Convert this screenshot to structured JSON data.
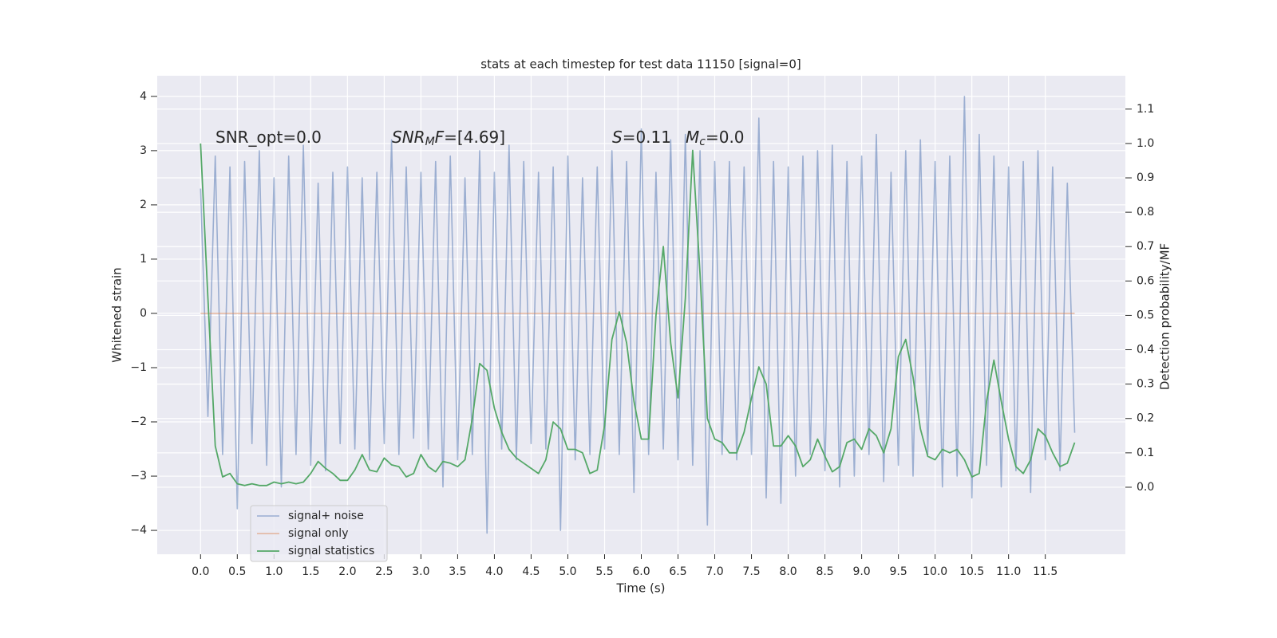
{
  "chart_data": {
    "type": "line",
    "title": "stats at each timestep for test data 11150 [signal=0]",
    "x_label": "Time (s)",
    "y_label": "Whitened strain",
    "y2_label": "Detection probability/MF",
    "grid": true,
    "legend": "lower left",
    "xlim": [
      -0.59,
      12.59
    ],
    "ylim": [
      -4.44,
      4.38
    ],
    "y2lim": [
      -0.195,
      1.197
    ],
    "xticks": [
      {
        "value": 0,
        "label": "0.0"
      },
      0.5,
      {
        "value": 1,
        "label": "1.0"
      },
      1.5,
      {
        "value": 2,
        "label": "2.0"
      },
      2.5,
      {
        "value": 3,
        "label": "3.0"
      },
      3.5,
      {
        "value": 4,
        "label": "4.0"
      },
      4.5,
      {
        "value": 5,
        "label": "5.0"
      },
      5.5,
      {
        "value": 6,
        "label": "6.0"
      },
      6.5,
      {
        "value": 7,
        "label": "7.0"
      },
      7.5,
      {
        "value": 8,
        "label": "8.0"
      },
      8.5,
      {
        "value": 9,
        "label": "9.0"
      },
      9.5,
      {
        "value": 10,
        "label": "10.0"
      },
      10.5,
      {
        "value": 11,
        "label": "11.0"
      },
      11.5
    ],
    "yticks": [
      {
        "value": -4,
        "label": "−4"
      },
      {
        "value": -3,
        "label": "−3"
      },
      {
        "value": -2,
        "label": "−2"
      },
      {
        "value": -1,
        "label": "−1"
      },
      0,
      1,
      2,
      3,
      4
    ],
    "y2ticks": [
      {
        "value": 0,
        "label": "0.0"
      },
      0.1,
      0.2,
      0.3,
      0.4,
      0.5,
      0.6,
      0.7,
      0.8,
      0.9,
      {
        "value": 1,
        "label": "1.0"
      },
      1.1
    ],
    "annotations": [
      {
        "parts": [
          {
            "text": "SNR_opt=0.0"
          }
        ]
      },
      {
        "parts": [
          {
            "text": "SNR",
            "italic": true
          },
          {
            "text": "M",
            "italic": true,
            "sub": true
          },
          {
            "text": "F",
            "italic": true
          },
          {
            "text": "=[4.69]"
          }
        ]
      },
      {
        "parts": [
          {
            "text": "S",
            "italic": true
          },
          {
            "text": "=0.11"
          }
        ]
      },
      {
        "parts": [
          {
            "text": "M",
            "italic": true
          },
          {
            "text": "c",
            "italic": true,
            "sub": true
          },
          {
            "text": "=0.0"
          }
        ]
      }
    ],
    "x": [
      0,
      0.1,
      0.2,
      0.3,
      0.4,
      0.5,
      0.6,
      0.7,
      0.8,
      0.9,
      1,
      1.1,
      1.2,
      1.3,
      1.4,
      1.5,
      1.6,
      1.7,
      1.8,
      1.9,
      2,
      2.1,
      2.2,
      2.3,
      2.4,
      2.5,
      2.6,
      2.7,
      2.8,
      2.9,
      3,
      3.1,
      3.2,
      3.3,
      3.4,
      3.5,
      3.6,
      3.7,
      3.8,
      3.9,
      4,
      4.1,
      4.2,
      4.3,
      4.4,
      4.5,
      4.6,
      4.7,
      4.8,
      4.9,
      5,
      5.1,
      5.2,
      5.3,
      5.4,
      5.5,
      5.6,
      5.7,
      5.8,
      5.9,
      6,
      6.1,
      6.2,
      6.3,
      6.4,
      6.5,
      6.6,
      6.7,
      6.8,
      6.9,
      7,
      7.1,
      7.2,
      7.3,
      7.4,
      7.5,
      7.6,
      7.7,
      7.8,
      7.9,
      8,
      8.1,
      8.2,
      8.3,
      8.4,
      8.5,
      8.6,
      8.7,
      8.8,
      8.9,
      9,
      9.1,
      9.2,
      9.3,
      9.4,
      9.5,
      9.6,
      9.7,
      9.8,
      9.9,
      10,
      10.1,
      10.2,
      10.3,
      10.4,
      10.5,
      10.6,
      10.7,
      10.8,
      10.9,
      11,
      11.1,
      11.2,
      11.3,
      11.4,
      11.5,
      11.6,
      11.7,
      11.8,
      11.9
    ],
    "series": [
      {
        "name": "signal+ noise",
        "color": "#4c72b0",
        "values": [
          2.3,
          -1.9,
          2.9,
          -2.6,
          2.7,
          -3.6,
          2.8,
          -2.4,
          3.0,
          -2.8,
          2.5,
          -3.2,
          2.9,
          -2.6,
          3.1,
          -2.8,
          2.4,
          -2.9,
          2.6,
          -2.4,
          2.7,
          -2.5,
          2.5,
          -2.7,
          2.6,
          -2.4,
          3.2,
          -2.6,
          2.7,
          -2.3,
          2.6,
          -2.5,
          2.8,
          -3.2,
          2.9,
          -2.7,
          2.5,
          -2.6,
          3.0,
          -4.05,
          2.6,
          -2.5,
          3.1,
          -2.7,
          2.8,
          -2.4,
          2.6,
          -2.5,
          2.7,
          -4.0,
          2.9,
          -2.7,
          2.5,
          -2.6,
          2.7,
          -2.5,
          3.0,
          -2.6,
          2.8,
          -3.3,
          3.4,
          -2.6,
          2.6,
          -2.5,
          3.2,
          -2.7,
          3.3,
          -2.8,
          3.0,
          -3.9,
          2.8,
          -2.6,
          2.8,
          -2.7,
          2.7,
          -2.6,
          3.6,
          -3.4,
          2.8,
          -3.5,
          2.7,
          -3.0,
          2.9,
          -2.6,
          3.0,
          -2.9,
          3.1,
          -3.2,
          2.8,
          -3.0,
          2.9,
          -2.6,
          3.3,
          -3.1,
          2.6,
          -2.8,
          3.0,
          -3.0,
          3.2,
          -2.6,
          2.8,
          -3.2,
          2.9,
          -3.0,
          4.0,
          -3.4,
          3.3,
          -2.8,
          2.9,
          -3.2,
          2.7,
          -2.9,
          2.8,
          -3.3,
          3.0,
          -2.7,
          2.7,
          -2.9,
          2.4,
          -2.2
        ]
      },
      {
        "name": "signal only",
        "color": "#dd8452",
        "values": [
          0,
          0,
          0,
          0,
          0,
          0,
          0,
          0,
          0,
          0,
          0,
          0,
          0,
          0,
          0,
          0,
          0,
          0,
          0,
          0,
          0,
          0,
          0,
          0,
          0,
          0,
          0,
          0,
          0,
          0,
          0,
          0,
          0,
          0,
          0,
          0,
          0,
          0,
          0,
          0,
          0,
          0,
          0,
          0,
          0,
          0,
          0,
          0,
          0,
          0,
          0,
          0,
          0,
          0,
          0,
          0,
          0,
          0,
          0,
          0,
          0,
          0,
          0,
          0,
          0,
          0,
          0,
          0,
          0,
          0,
          0,
          0,
          0,
          0,
          0,
          0,
          0,
          0,
          0,
          0,
          0,
          0,
          0,
          0,
          0,
          0,
          0,
          0,
          0,
          0,
          0,
          0,
          0,
          0,
          0,
          0,
          0,
          0,
          0,
          0,
          0,
          0,
          0,
          0,
          0,
          0,
          0,
          0,
          0,
          0,
          0,
          0,
          0,
          0,
          0,
          0,
          0,
          0,
          0,
          0
        ]
      },
      {
        "name": "signal statistics",
        "color": "#55a868",
        "axis": "y2",
        "values": [
          1.0,
          0.55,
          0.12,
          0.03,
          0.04,
          0.01,
          0.005,
          0.01,
          0.005,
          0.005,
          0.015,
          0.01,
          0.015,
          0.01,
          0.015,
          0.04,
          0.075,
          0.055,
          0.04,
          0.02,
          0.02,
          0.05,
          0.095,
          0.05,
          0.045,
          0.085,
          0.065,
          0.06,
          0.03,
          0.04,
          0.095,
          0.06,
          0.045,
          0.075,
          0.07,
          0.06,
          0.08,
          0.2,
          0.36,
          0.34,
          0.23,
          0.16,
          0.11,
          0.085,
          0.07,
          0.055,
          0.04,
          0.08,
          0.19,
          0.17,
          0.11,
          0.11,
          0.1,
          0.04,
          0.05,
          0.18,
          0.43,
          0.51,
          0.42,
          0.25,
          0.14,
          0.14,
          0.5,
          0.7,
          0.42,
          0.26,
          0.55,
          0.98,
          0.62,
          0.2,
          0.14,
          0.13,
          0.1,
          0.1,
          0.16,
          0.26,
          0.35,
          0.3,
          0.12,
          0.12,
          0.15,
          0.12,
          0.06,
          0.08,
          0.14,
          0.09,
          0.045,
          0.06,
          0.13,
          0.14,
          0.11,
          0.17,
          0.15,
          0.1,
          0.17,
          0.38,
          0.43,
          0.32,
          0.17,
          0.09,
          0.08,
          0.11,
          0.1,
          0.11,
          0.08,
          0.03,
          0.04,
          0.25,
          0.37,
          0.25,
          0.14,
          0.06,
          0.04,
          0.08,
          0.17,
          0.15,
          0.1,
          0.06,
          0.07,
          0.13
        ]
      }
    ]
  }
}
